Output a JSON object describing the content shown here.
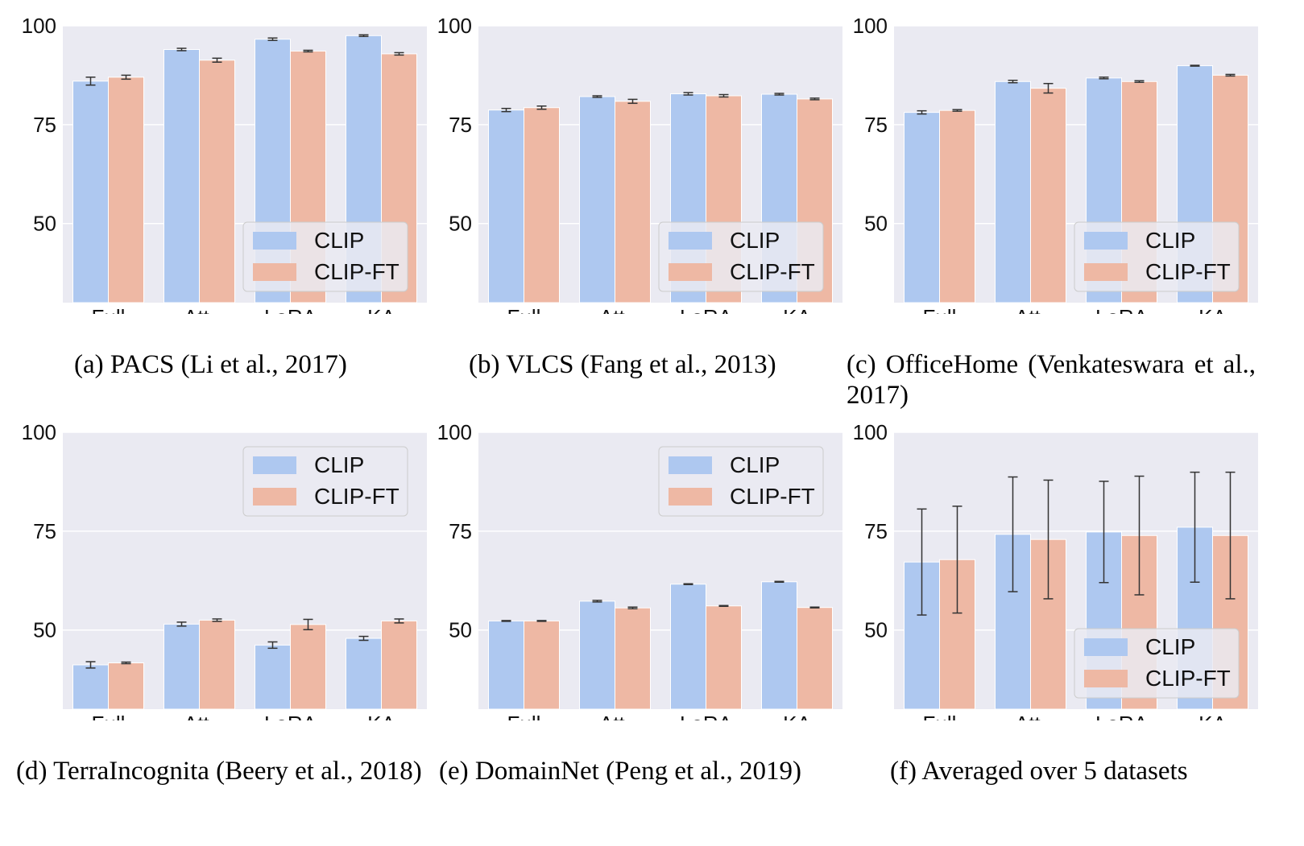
{
  "figure": {
    "colors": {
      "CLIP": "#aec8f0",
      "CLIP-FT": "#eeb8a4",
      "plot_bg": "#eaeaf2",
      "grid": "#ffffff",
      "errorbar": "#333333"
    }
  },
  "chart_data": [
    {
      "type": "bar",
      "caption": "(a) PACS (Li et al., 2017)",
      "categories": [
        "Full",
        "Att.",
        "LoRA",
        "KA"
      ],
      "ylim": [
        30,
        100
      ],
      "yticks": [
        "50",
        "75",
        "100"
      ],
      "legend_position": "lower-right",
      "series": [
        {
          "name": "CLIP",
          "values": [
            86.0,
            94.0,
            96.6,
            97.5
          ],
          "errors": [
            1.0,
            0.3,
            0.3,
            0.2
          ]
        },
        {
          "name": "CLIP-FT",
          "values": [
            87.0,
            91.3,
            93.6,
            92.9
          ],
          "errors": [
            0.5,
            0.5,
            0.2,
            0.3
          ]
        }
      ]
    },
    {
      "type": "bar",
      "caption": "(b) VLCS (Fang et al., 2013)",
      "categories": [
        "Full",
        "Att.",
        "LoRA",
        "KA"
      ],
      "ylim": [
        30,
        100
      ],
      "yticks": [
        "50",
        "75",
        "100"
      ],
      "legend_position": "lower-right",
      "series": [
        {
          "name": "CLIP",
          "values": [
            78.7,
            82.1,
            82.8,
            82.7
          ],
          "errors": [
            0.4,
            0.2,
            0.3,
            0.2
          ]
        },
        {
          "name": "CLIP-FT",
          "values": [
            79.3,
            80.9,
            82.3,
            81.5
          ],
          "errors": [
            0.4,
            0.5,
            0.3,
            0.2
          ]
        }
      ]
    },
    {
      "type": "bar",
      "caption": "(c) OfficeHome (Venkateswara et al., 2017)",
      "categories": [
        "Full",
        "Att.",
        "LoRA",
        "KA"
      ],
      "ylim": [
        30,
        100
      ],
      "yticks": [
        "50",
        "75",
        "100"
      ],
      "legend_position": "lower-right",
      "series": [
        {
          "name": "CLIP",
          "values": [
            78.1,
            85.9,
            86.8,
            89.9
          ],
          "errors": [
            0.4,
            0.3,
            0.2,
            0.1
          ]
        },
        {
          "name": "CLIP-FT",
          "values": [
            78.6,
            84.2,
            85.9,
            87.5
          ],
          "errors": [
            0.2,
            1.2,
            0.2,
            0.2
          ]
        }
      ]
    },
    {
      "type": "bar",
      "caption": "(d) TerraIncognita (Beery et al., 2018)",
      "categories": [
        "Full",
        "Att.",
        "LoRA",
        "KA"
      ],
      "ylim": [
        30,
        100
      ],
      "yticks": [
        "50",
        "75",
        "100"
      ],
      "legend_position": "upper-right",
      "series": [
        {
          "name": "CLIP",
          "values": [
            41.2,
            51.5,
            46.2,
            47.9
          ],
          "errors": [
            0.8,
            0.5,
            0.8,
            0.5
          ]
        },
        {
          "name": "CLIP-FT",
          "values": [
            41.7,
            52.5,
            51.4,
            52.3
          ],
          "errors": [
            0.2,
            0.3,
            1.3,
            0.5
          ]
        }
      ]
    },
    {
      "type": "bar",
      "caption": "(e) DomainNet (Peng et al., 2019)",
      "categories": [
        "Full",
        "Att.",
        "LoRA",
        "KA"
      ],
      "ylim": [
        30,
        100
      ],
      "yticks": [
        "50",
        "75",
        "100"
      ],
      "legend_position": "upper-right",
      "series": [
        {
          "name": "CLIP",
          "values": [
            52.3,
            57.3,
            61.6,
            62.2
          ],
          "errors": [
            0.1,
            0.2,
            0.1,
            0.1
          ]
        },
        {
          "name": "CLIP-FT",
          "values": [
            52.3,
            55.6,
            56.1,
            55.7
          ],
          "errors": [
            0.1,
            0.2,
            0.1,
            0.1
          ]
        }
      ]
    },
    {
      "type": "bar",
      "caption": "(f) Averaged over 5 datasets",
      "categories": [
        "Full",
        "Att.",
        "LoRA",
        "KA"
      ],
      "ylim": [
        30,
        100
      ],
      "yticks": [
        "50",
        "75",
        "100"
      ],
      "legend_position": "lower-right",
      "series": [
        {
          "name": "CLIP",
          "values": [
            67.2,
            74.2,
            74.8,
            76.0
          ],
          "errors": [
            13.4,
            14.5,
            12.8,
            13.9
          ]
        },
        {
          "name": "CLIP-FT",
          "values": [
            67.8,
            72.9,
            73.9,
            73.9
          ],
          "errors": [
            13.5,
            15.0,
            15.0,
            16.0
          ]
        }
      ]
    }
  ]
}
